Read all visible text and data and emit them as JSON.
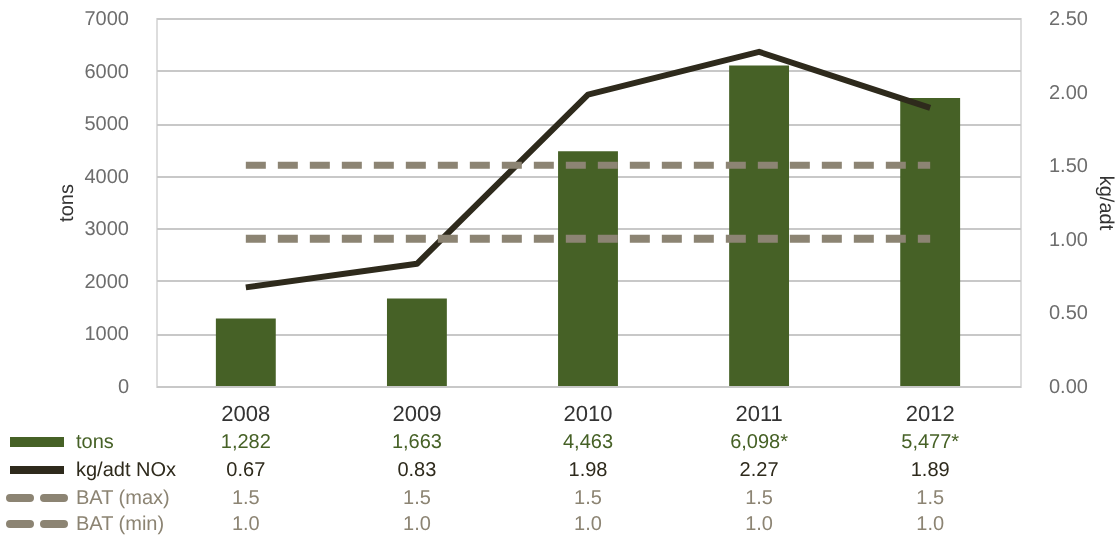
{
  "chart_data": {
    "type": "bar",
    "categories": [
      "2008",
      "2009",
      "2010",
      "2011",
      "2012"
    ],
    "ylabel": "tons",
    "y2label": "kg/adt",
    "ylim": [
      0,
      7000
    ],
    "yticks": [
      0,
      1000,
      2000,
      3000,
      4000,
      5000,
      6000,
      7000
    ],
    "y2lim": [
      0,
      2.5
    ],
    "y2ticks": [
      {
        "value": 0,
        "label": "0.00"
      },
      {
        "value": 0.5,
        "label": "0.50"
      },
      {
        "value": 1,
        "label": "1.00"
      },
      {
        "value": 1.5,
        "label": "1.50"
      },
      {
        "value": 2,
        "label": "2.00"
      },
      {
        "value": 2.5,
        "label": "2.50"
      }
    ],
    "grid": "y",
    "legend": "bottom",
    "series": [
      {
        "name": "tons",
        "color": "#466126",
        "values": [
          1282,
          1663,
          4463,
          6098,
          5477
        ],
        "value_labels": [
          "1,282",
          "1,663",
          "4,463",
          "6,098*",
          "5,477*"
        ]
      },
      {
        "name": "kg/adt NOx",
        "type": "line",
        "axis": "y2",
        "color": "#2e2a1c",
        "line_style": "solid",
        "values": [
          0.67,
          0.83,
          1.98,
          2.27,
          1.89
        ],
        "value_labels": [
          "0.67",
          "0.83",
          "1.98",
          "2.27",
          "1.89"
        ]
      },
      {
        "name": "BAT (max)",
        "type": "line",
        "axis": "y2",
        "color": "#8c8473",
        "line_style": "dashed",
        "values": [
          1.5,
          1.5,
          1.5,
          1.5,
          1.5
        ],
        "value_labels": [
          "1.5",
          "1.5",
          "1.5",
          "1.5",
          "1.5"
        ]
      },
      {
        "name": "BAT (min)",
        "type": "line",
        "axis": "y2",
        "color": "#8c8473",
        "line_style": "dashed",
        "values": [
          1.0,
          1.0,
          1.0,
          1.0,
          1.0
        ],
        "value_labels": [
          "1.0",
          "1.0",
          "1.0",
          "1.0",
          "1.0"
        ]
      }
    ]
  }
}
